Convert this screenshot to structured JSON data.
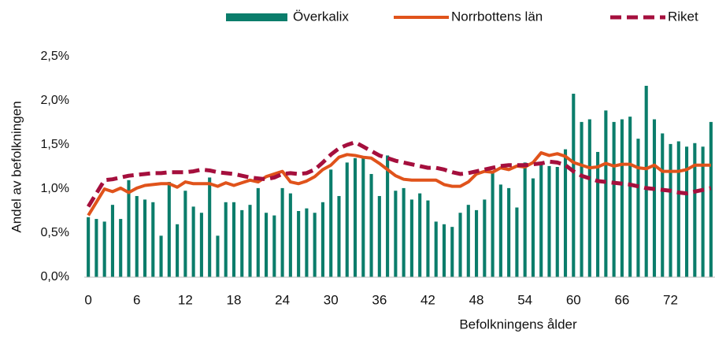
{
  "chart_data": {
    "type": "bar_line",
    "ylabel": "Andel av befolkningen",
    "xlabel": "Befolkningens ålder",
    "categories": [
      "0",
      null,
      null,
      null,
      null,
      null,
      "6",
      null,
      null,
      null,
      null,
      null,
      "12",
      null,
      null,
      null,
      null,
      null,
      "18",
      null,
      null,
      null,
      null,
      null,
      "24",
      null,
      null,
      null,
      null,
      null,
      "30",
      null,
      null,
      null,
      null,
      null,
      "36",
      null,
      null,
      null,
      null,
      null,
      "42",
      null,
      null,
      null,
      null,
      null,
      "48",
      null,
      null,
      null,
      null,
      null,
      "54",
      null,
      null,
      null,
      null,
      null,
      "60",
      null,
      null,
      null,
      null,
      null,
      "66",
      null,
      null,
      null,
      null,
      null,
      "72",
      null,
      null,
      null,
      null,
      null
    ],
    "series": [
      {
        "name": "Överkalix",
        "kind": "bar",
        "color": "#0b7d6b",
        "values": [
          0.68,
          0.66,
          0.63,
          0.82,
          0.66,
          1.1,
          0.92,
          0.88,
          0.85,
          0.47,
          1.08,
          0.6,
          0.98,
          0.8,
          0.73,
          1.13,
          0.47,
          0.85,
          0.85,
          0.76,
          0.82,
          1.01,
          0.73,
          0.7,
          1.01,
          0.95,
          0.75,
          0.78,
          0.73,
          0.85,
          1.22,
          0.92,
          1.3,
          1.35,
          1.37,
          1.17,
          0.92,
          1.38,
          0.98,
          1.01,
          0.88,
          0.95,
          0.87,
          0.63,
          0.6,
          0.57,
          0.73,
          0.82,
          0.76,
          0.88,
          1.2,
          1.05,
          1.01,
          0.79,
          1.3,
          1.12,
          1.3,
          1.26,
          1.25,
          1.45,
          2.08,
          1.76,
          1.79,
          1.42,
          1.89,
          1.76,
          1.79,
          1.82,
          1.57,
          2.17,
          1.79,
          1.63,
          1.51,
          1.54,
          1.48,
          1.52,
          1.48,
          1.76
        ]
      },
      {
        "name": "Norrbottens län",
        "kind": "line",
        "color": "#e0531b",
        "values": [
          0.7,
          0.85,
          1.0,
          0.97,
          1.01,
          0.96,
          1.01,
          1.04,
          1.05,
          1.06,
          1.06,
          1.02,
          1.08,
          1.06,
          1.06,
          1.06,
          1.03,
          1.07,
          1.04,
          1.07,
          1.1,
          1.08,
          1.14,
          1.17,
          1.2,
          1.08,
          1.06,
          1.09,
          1.14,
          1.22,
          1.27,
          1.36,
          1.39,
          1.38,
          1.36,
          1.35,
          1.29,
          1.22,
          1.15,
          1.11,
          1.1,
          1.1,
          1.1,
          1.1,
          1.05,
          1.03,
          1.03,
          1.08,
          1.17,
          1.2,
          1.19,
          1.24,
          1.22,
          1.26,
          1.25,
          1.3,
          1.41,
          1.38,
          1.4,
          1.37,
          1.3,
          1.27,
          1.24,
          1.25,
          1.29,
          1.26,
          1.28,
          1.28,
          1.24,
          1.23,
          1.27,
          1.2,
          1.2,
          1.2,
          1.22,
          1.27,
          1.27,
          1.27
        ]
      },
      {
        "name": "Riket",
        "kind": "dashed",
        "color": "#a50f3d",
        "values": [
          0.8,
          0.95,
          1.1,
          1.11,
          1.13,
          1.15,
          1.16,
          1.17,
          1.18,
          1.18,
          1.19,
          1.19,
          1.19,
          1.2,
          1.22,
          1.21,
          1.19,
          1.18,
          1.17,
          1.15,
          1.13,
          1.12,
          1.11,
          1.13,
          1.17,
          1.18,
          1.17,
          1.18,
          1.22,
          1.3,
          1.39,
          1.46,
          1.5,
          1.53,
          1.48,
          1.43,
          1.38,
          1.35,
          1.32,
          1.3,
          1.28,
          1.26,
          1.24,
          1.24,
          1.22,
          1.19,
          1.17,
          1.18,
          1.2,
          1.22,
          1.24,
          1.26,
          1.27,
          1.27,
          1.27,
          1.28,
          1.29,
          1.31,
          1.3,
          1.27,
          1.2,
          1.15,
          1.12,
          1.09,
          1.08,
          1.07,
          1.06,
          1.05,
          1.03,
          1.01,
          1.0,
          0.99,
          0.98,
          0.96,
          0.95,
          0.97,
          0.99,
          1.01
        ]
      }
    ],
    "ylim": [
      0,
      2.5
    ],
    "yticks": [
      {
        "value": 0,
        "label": "0,0%"
      },
      {
        "value": 0.5,
        "label": "0,5%"
      },
      {
        "value": 1,
        "label": "1,0%"
      },
      {
        "value": 1.5,
        "label": "1,5%"
      },
      {
        "value": 2,
        "label": "2,0%"
      },
      {
        "value": 2.5,
        "label": "2,5%"
      }
    ],
    "legend": "top-right"
  }
}
